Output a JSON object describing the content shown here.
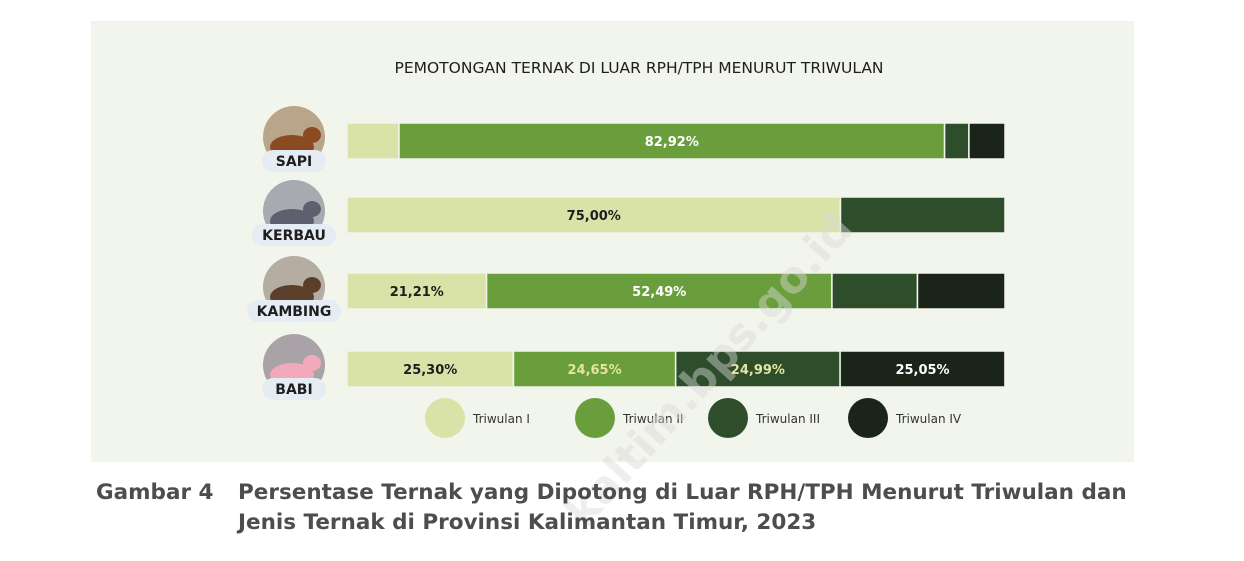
{
  "colors": {
    "panel_bg": "#f2f5ec",
    "triwulan": [
      "#d9e3a8",
      "#6a9e3c",
      "#2e4d2b",
      "#1a2419"
    ],
    "label_text_dark": "#1e1e1e",
    "label_text_light": "#ffffff",
    "label_text_yellow": "#e3e5a0",
    "pill_bg": "#e6ecf4"
  },
  "chart_data": {
    "type": "bar",
    "orientation": "horizontal",
    "stacked": true,
    "title": "PEMOTONGAN TERNAK DI LUAR RPH/TPH MENURUT TRIWULAN",
    "categories": [
      "SAPI",
      "KERBAU",
      "KAMBING",
      "BABI"
    ],
    "category_icons": [
      "cow-icon",
      "buffalo-icon",
      "goat-icon",
      "pig-icon"
    ],
    "series": [
      {
        "name": "Triwulan I",
        "values": [
          7.9,
          75.0,
          21.21,
          25.3
        ]
      },
      {
        "name": "Triwulan II",
        "values": [
          82.92,
          0,
          52.49,
          24.65
        ]
      },
      {
        "name": "Triwulan III",
        "values": [
          3.7,
          25.0,
          13.0,
          24.99
        ]
      },
      {
        "name": "Triwulan IV",
        "values": [
          5.48,
          0,
          13.3,
          25.05
        ]
      }
    ],
    "data_labels": [
      [
        "",
        "82,92%",
        "",
        ""
      ],
      [
        "75,00%",
        "",
        "",
        ""
      ],
      [
        "21,21%",
        "52,49%",
        "",
        ""
      ],
      [
        "25,30%",
        "24,65%",
        "24,99%",
        "25,05%"
      ]
    ],
    "xlim": [
      0,
      100
    ],
    "legend_position": "bottom"
  },
  "caption": {
    "label": "Gambar 4",
    "text": "Persentase Ternak yang Dipotong di Luar RPH/TPH Menurut Triwulan dan Jenis Ternak di Provinsi Kalimantan Timur, 2023"
  },
  "watermark": "kaltim.bps.go.id"
}
